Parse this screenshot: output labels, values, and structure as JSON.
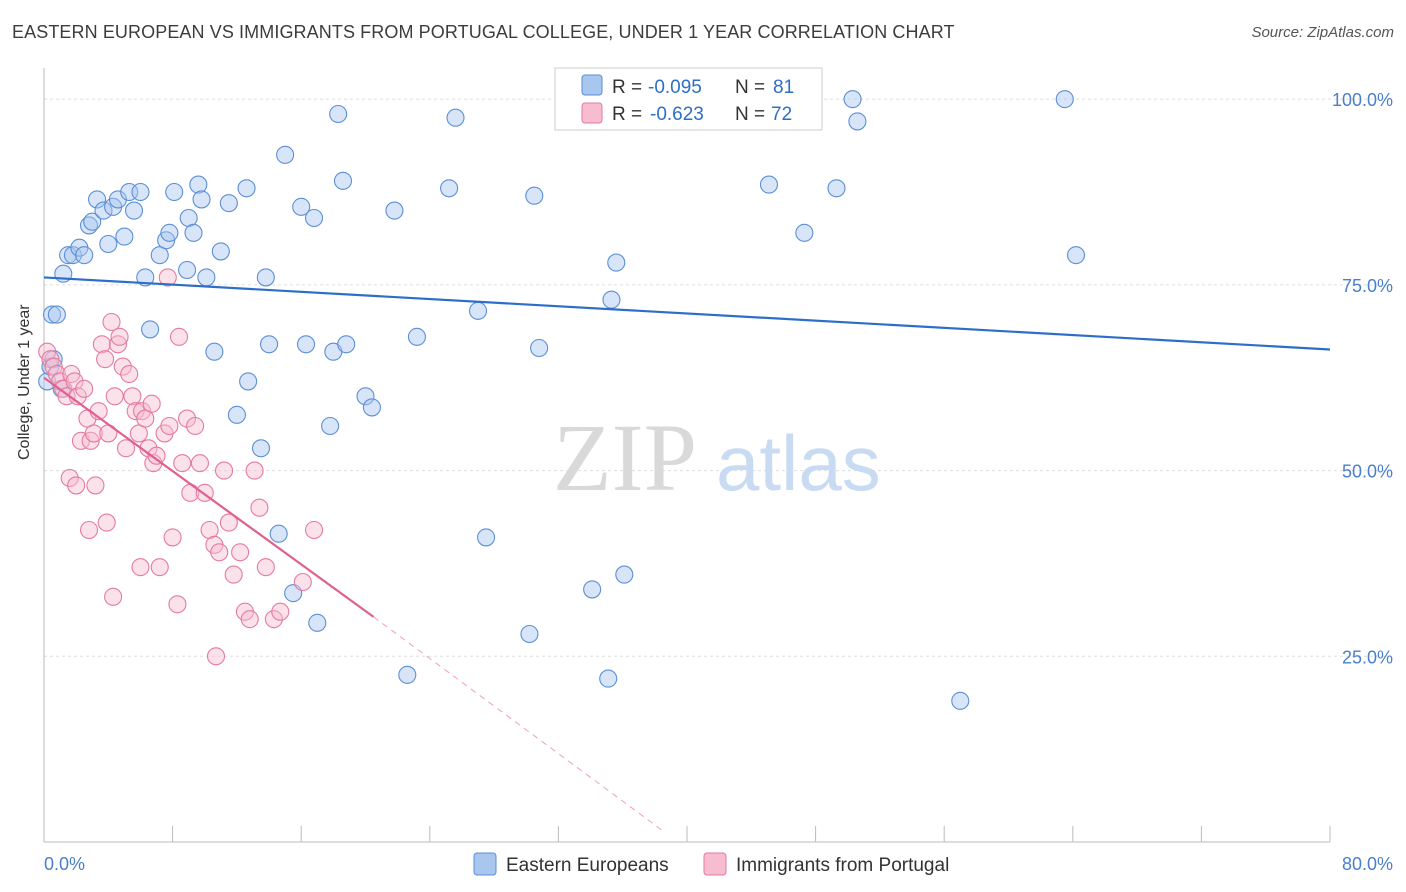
{
  "title": "EASTERN EUROPEAN VS IMMIGRANTS FROM PORTUGAL COLLEGE, UNDER 1 YEAR CORRELATION CHART",
  "source": "Source: ZipAtlas.com",
  "watermark": {
    "zip": "ZIP",
    "atlas": "atlas"
  },
  "colors": {
    "blue": "#5b8fd6",
    "blue_fill": "#a9c6ef",
    "blue_line": "#2d6ec9",
    "pink": "#e57aa0",
    "pink_fill": "#f7bcd0",
    "pink_line": "#e0608f",
    "axis_text": "#4a7fcc",
    "grid": "#dddddd"
  },
  "legend": {
    "rows": [
      {
        "r_label": "R =",
        "r_value": "-0.095",
        "n_label": "N =",
        "n_value": "81"
      },
      {
        "r_label": "R =",
        "r_value": "-0.623",
        "n_label": "N =",
        "n_value": "72"
      }
    ]
  },
  "bottom_legend": [
    "Eastern Europeans",
    "Immigrants from Portugal"
  ],
  "chart_data": {
    "type": "scatter",
    "title": "EASTERN EUROPEAN VS IMMIGRANTS FROM PORTUGAL COLLEGE, UNDER 1 YEAR CORRELATION CHART",
    "xlabel": "",
    "ylabel": "College, Under 1 year",
    "xlim": [
      0,
      80
    ],
    "ylim": [
      0,
      105
    ],
    "x_tick_labels": [
      "0.0%",
      "80.0%"
    ],
    "y_ticks": [
      25,
      50,
      75,
      100
    ],
    "y_tick_labels": [
      "25.0%",
      "50.0%",
      "75.0%",
      "100.0%"
    ],
    "grid": true,
    "legend_position": "top-center",
    "series": [
      {
        "name": "Eastern Europeans",
        "r": -0.095,
        "n": 81,
        "trend": {
          "x0": 0,
          "y0": 76.0,
          "x1": 80,
          "y1": 66.3
        },
        "points": [
          [
            0.5,
            71
          ],
          [
            0.8,
            71
          ],
          [
            1.2,
            76.5
          ],
          [
            1.5,
            79
          ],
          [
            1.8,
            79
          ],
          [
            2.2,
            80
          ],
          [
            2.5,
            79
          ],
          [
            2.8,
            83
          ],
          [
            3,
            83.5
          ],
          [
            3.3,
            86.5
          ],
          [
            3.7,
            85
          ],
          [
            4,
            80.5
          ],
          [
            4.3,
            85.5
          ],
          [
            4.6,
            86.5
          ],
          [
            5,
            81.5
          ],
          [
            5.3,
            87.5
          ],
          [
            5.6,
            85
          ],
          [
            6,
            87.5
          ],
          [
            6.3,
            76
          ],
          [
            6.6,
            69
          ],
          [
            7.2,
            79
          ],
          [
            7.6,
            81
          ],
          [
            7.8,
            82
          ],
          [
            8.1,
            87.5
          ],
          [
            8.9,
            77
          ],
          [
            9,
            84
          ],
          [
            9.3,
            82
          ],
          [
            9.6,
            88.5
          ],
          [
            9.8,
            86.5
          ],
          [
            10.1,
            76
          ],
          [
            10.6,
            66
          ],
          [
            11,
            79.5
          ],
          [
            11.5,
            86
          ],
          [
            12,
            57.5
          ],
          [
            12.6,
            88
          ],
          [
            13.5,
            53
          ],
          [
            12.7,
            62
          ],
          [
            13.8,
            76
          ],
          [
            14,
            67
          ],
          [
            14.6,
            41.5
          ],
          [
            15,
            92.5
          ],
          [
            15.5,
            33.5
          ],
          [
            16,
            85.5
          ],
          [
            16.3,
            67
          ],
          [
            16.8,
            84
          ],
          [
            17,
            29.5
          ],
          [
            17.8,
            56
          ],
          [
            18,
            66
          ],
          [
            18.3,
            98
          ],
          [
            18.6,
            89
          ],
          [
            18.8,
            67
          ],
          [
            20,
            60
          ],
          [
            20.4,
            58.5
          ],
          [
            21.8,
            85
          ],
          [
            22.6,
            22.5
          ],
          [
            23.2,
            68
          ],
          [
            25.2,
            88
          ],
          [
            25.6,
            97.5
          ],
          [
            27,
            71.5
          ],
          [
            27.5,
            41
          ],
          [
            30.2,
            28
          ],
          [
            30.5,
            87
          ],
          [
            30.8,
            66.5
          ],
          [
            34.1,
            34
          ],
          [
            35.1,
            22
          ],
          [
            35.3,
            73
          ],
          [
            35.6,
            78
          ],
          [
            36.1,
            36
          ],
          [
            39.5,
            100
          ],
          [
            45.1,
            88.5
          ],
          [
            47.3,
            82
          ],
          [
            49.3,
            88
          ],
          [
            50.3,
            100
          ],
          [
            50.6,
            97
          ],
          [
            57,
            19
          ],
          [
            63.5,
            100
          ],
          [
            64.2,
            79
          ],
          [
            0.2,
            62
          ],
          [
            0.4,
            64
          ],
          [
            0.6,
            65
          ],
          [
            1.1,
            61
          ]
        ]
      },
      {
        "name": "Immigrants from Portugal",
        "r": -0.623,
        "n": 72,
        "trend": {
          "x0": 0,
          "y0": 62.5,
          "x1": 20.5,
          "y1": 30.3,
          "dash_x1": 38.5,
          "dash_y1": 1.5
        },
        "points": [
          [
            0.2,
            66
          ],
          [
            0.4,
            65
          ],
          [
            0.6,
            64
          ],
          [
            0.8,
            63
          ],
          [
            1,
            62
          ],
          [
            1.2,
            61
          ],
          [
            1.4,
            60
          ],
          [
            1.7,
            63
          ],
          [
            1.9,
            62
          ],
          [
            2.1,
            60
          ],
          [
            2.3,
            54
          ],
          [
            2.5,
            61
          ],
          [
            2.7,
            57
          ],
          [
            2.9,
            54
          ],
          [
            3.1,
            55
          ],
          [
            3.4,
            58
          ],
          [
            3.6,
            67
          ],
          [
            3.8,
            65
          ],
          [
            4,
            55
          ],
          [
            4.2,
            70
          ],
          [
            4.4,
            60
          ],
          [
            4.6,
            67
          ],
          [
            4.9,
            64
          ],
          [
            5.1,
            53
          ],
          [
            5.3,
            63
          ],
          [
            5.5,
            60
          ],
          [
            5.7,
            58
          ],
          [
            5.9,
            55
          ],
          [
            6.1,
            58
          ],
          [
            6.3,
            57
          ],
          [
            6.5,
            53
          ],
          [
            6.8,
            51
          ],
          [
            7,
            52
          ],
          [
            7.2,
            37
          ],
          [
            7.5,
            55
          ],
          [
            7.8,
            56
          ],
          [
            8,
            41
          ],
          [
            8.3,
            32
          ],
          [
            8.6,
            51
          ],
          [
            8.9,
            57
          ],
          [
            9.1,
            47
          ],
          [
            9.4,
            56
          ],
          [
            9.7,
            51
          ],
          [
            10,
            47
          ],
          [
            10.3,
            42
          ],
          [
            10.6,
            40
          ],
          [
            10.9,
            39
          ],
          [
            11.2,
            50
          ],
          [
            11.5,
            43
          ],
          [
            11.8,
            36
          ],
          [
            12.2,
            39
          ],
          [
            12.5,
            31
          ],
          [
            12.8,
            30
          ],
          [
            13.1,
            50
          ],
          [
            13.4,
            45
          ],
          [
            13.8,
            37
          ],
          [
            14.3,
            30
          ],
          [
            14.7,
            31
          ],
          [
            16.1,
            35
          ],
          [
            16.8,
            42
          ],
          [
            1.6,
            49
          ],
          [
            2,
            48
          ],
          [
            2.8,
            42
          ],
          [
            3.2,
            48
          ],
          [
            3.9,
            43
          ],
          [
            4.3,
            33
          ],
          [
            6,
            37
          ],
          [
            7.7,
            76
          ],
          [
            8.4,
            68
          ],
          [
            10.7,
            25
          ],
          [
            4.7,
            68
          ],
          [
            6.7,
            59
          ]
        ]
      }
    ]
  }
}
